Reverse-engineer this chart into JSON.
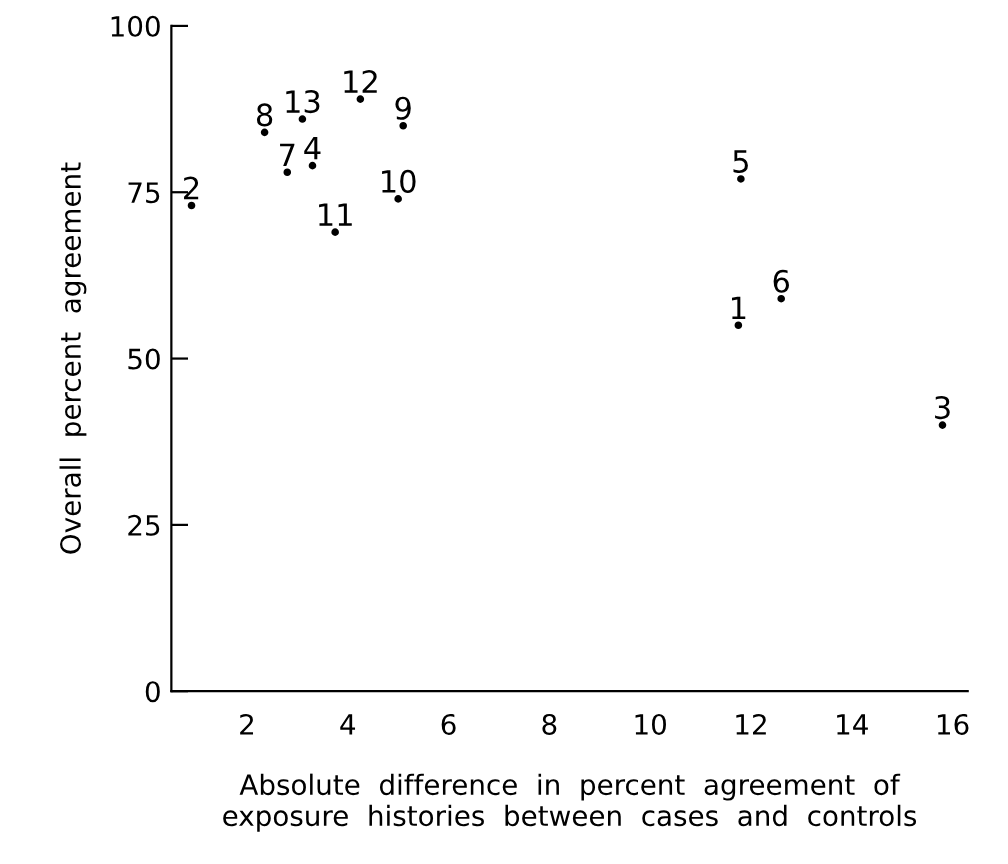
{
  "chart_data": {
    "type": "scatter",
    "xlabel": "Absolute  difference  in  percent  agreement  of\nexposure  histories  between  cases  and  controls",
    "ylabel": "Overall  percent  agreement",
    "annotations": [
      {
        "text": "1",
        "x": 11.75,
        "y": 55
      },
      {
        "text": "2",
        "x": 0.9,
        "y": 73
      },
      {
        "text": "3",
        "x": 15.8,
        "y": 40
      },
      {
        "text": "4",
        "x": 3.3,
        "y": 79
      },
      {
        "text": "5",
        "x": 11.8,
        "y": 77
      },
      {
        "text": "6",
        "x": 12.6,
        "y": 59
      },
      {
        "text": "7",
        "x": 2.8,
        "y": 78
      },
      {
        "text": "8",
        "x": 2.35,
        "y": 84
      },
      {
        "text": "9",
        "x": 5.1,
        "y": 85
      },
      {
        "text": "10",
        "x": 5.0,
        "y": 74
      },
      {
        "text": "11",
        "x": 3.75,
        "y": 69
      },
      {
        "text": "12",
        "x": 4.25,
        "y": 89
      },
      {
        "text": "13",
        "x": 3.1,
        "y": 86
      }
    ],
    "series": [
      {
        "color": "#000000",
        "x": [
          11.75,
          0.9,
          15.8,
          3.3,
          11.8,
          12.6,
          2.8,
          2.35,
          5.1,
          5.0,
          3.75,
          4.25,
          3.1
        ],
        "values": [
          55,
          73,
          40,
          79,
          77,
          59,
          78,
          84,
          85,
          74,
          69,
          89,
          86
        ]
      }
    ],
    "marker": "circle",
    "xlim": [
      0.5,
      16.3
    ],
    "ylim": [
      0,
      100
    ],
    "xticks": [
      2,
      4,
      6,
      8,
      10,
      12,
      14,
      16
    ],
    "yticks": [
      0,
      25,
      50,
      75,
      100
    ]
  }
}
